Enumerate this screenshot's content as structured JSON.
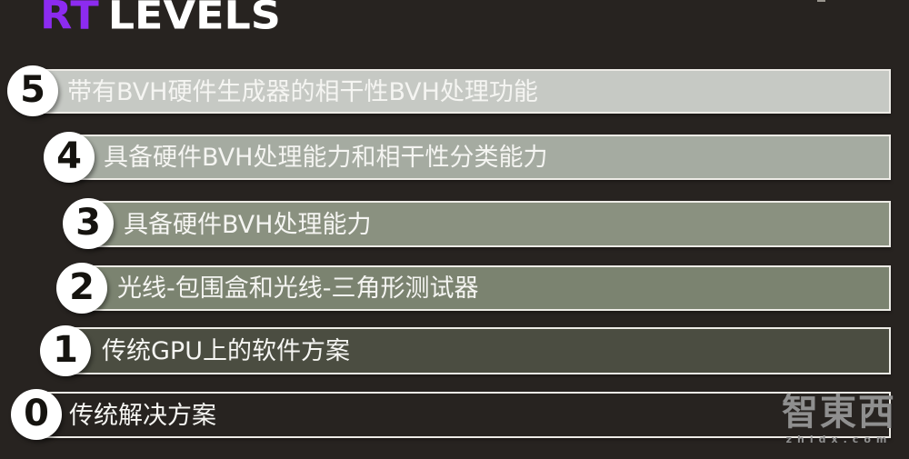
{
  "title": {
    "rt": "RT",
    "levels": "LEVELS",
    "rt_color": "#8c2bf0",
    "levels_color": "#ffffff"
  },
  "levels": [
    {
      "number": "5",
      "label": "带有BVH硬件生成器的相干性BVH处理功能",
      "bar_color": "#c6c9c4"
    },
    {
      "number": "4",
      "label": "具备硬件BVH处理能力和相干性分类能力",
      "bar_color": "#a5aba1"
    },
    {
      "number": "3",
      "label": "具备硬件BVH处理能力",
      "bar_color": "#8a9180"
    },
    {
      "number": "2",
      "label": "光线-包围盒和光线-三角形测试器",
      "bar_color": "#7b8370"
    },
    {
      "number": "1",
      "label": "传统GPU上的软件方案",
      "bar_color": "#4b4d41"
    },
    {
      "number": "0",
      "label": "传统解决方案",
      "bar_color": "transparent"
    }
  ],
  "watermark": {
    "cn": "智東西",
    "en": "zhidx.com",
    "color": "#8f8f8f"
  },
  "colors": {
    "background": "#272320",
    "bar_border": "#edebe6",
    "label_text": "#f5f5f2",
    "badge_fill": "#ffffff",
    "badge_number": "#15130f"
  }
}
